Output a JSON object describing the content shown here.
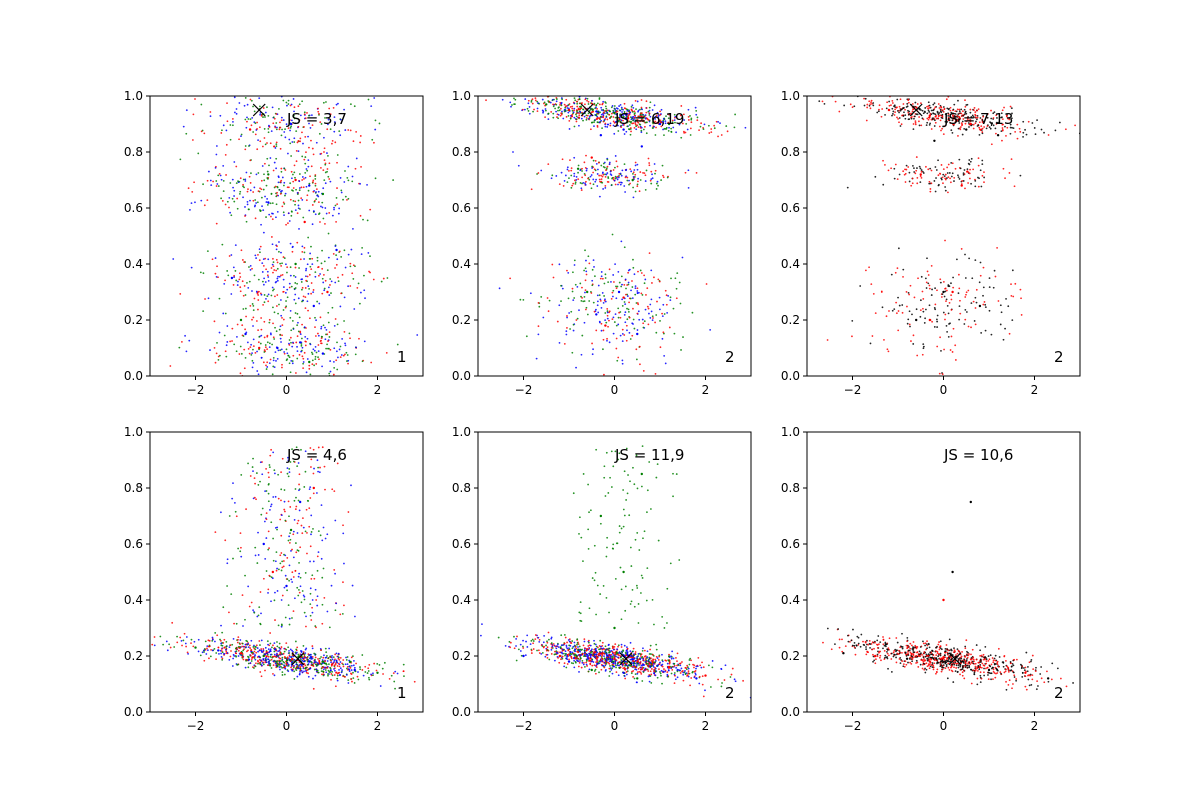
{
  "chart_data": [
    {
      "type": "scatter",
      "row": 1,
      "col": 1,
      "annotation": "JS = 3,7",
      "corner_label": "1",
      "xlim": [
        -3,
        3
      ],
      "ylim": [
        0,
        1
      ],
      "xticks": [
        "−2",
        "0",
        "2"
      ],
      "yticks": [
        "0.0",
        "0.2",
        "0.4",
        "0.6",
        "0.8",
        "1.0"
      ],
      "marker": {
        "x": -0.6,
        "y": 0.95
      },
      "series": [
        {
          "color": "#0000ff",
          "points": [
            [
              -0.2,
              0.1
            ],
            [
              0.3,
              0.12
            ],
            [
              0.8,
              0.08
            ],
            [
              -0.9,
              0.15
            ],
            [
              0.5,
              0.68
            ],
            [
              -0.4,
              0.62
            ],
            [
              0.1,
              0.9
            ],
            [
              -1.2,
              0.35
            ],
            [
              1.1,
              0.45
            ],
            [
              0.6,
              0.25
            ]
          ]
        },
        {
          "color": "#ff0000",
          "points": [
            [
              -0.6,
              0.1
            ],
            [
              0.2,
              0.7
            ],
            [
              -0.8,
              0.88
            ],
            [
              0.9,
              0.3
            ],
            [
              0.4,
              0.55
            ]
          ]
        },
        {
          "color": "#008000",
          "points": [
            [
              0.5,
              0.05
            ],
            [
              -0.4,
              0.72
            ],
            [
              0.2,
              0.4
            ],
            [
              -1.0,
              0.2
            ],
            [
              0.8,
              0.65
            ]
          ]
        }
      ]
    },
    {
      "type": "scatter",
      "row": 1,
      "col": 2,
      "annotation": "JS = 6,19",
      "corner_label": "2",
      "xlim": [
        -3,
        3
      ],
      "ylim": [
        0,
        1
      ],
      "xticks": [
        "−2",
        "0",
        "2"
      ],
      "yticks": [
        "0.0",
        "0.2",
        "0.4",
        "0.6",
        "0.8",
        "1.0"
      ],
      "marker": {
        "x": -0.6,
        "y": 0.95
      },
      "series": [
        {
          "color": "#0000ff",
          "points": [
            [
              0.2,
              0.88
            ],
            [
              0.6,
              0.82
            ],
            [
              -0.3,
              0.86
            ],
            [
              1.0,
              0.9
            ],
            [
              0.1,
              0.3
            ],
            [
              -0.4,
              0.22
            ],
            [
              0.5,
              0.15
            ]
          ]
        },
        {
          "color": "#ff0000",
          "points": [
            [
              -1.0,
              0.95
            ],
            [
              0.3,
              0.92
            ],
            [
              -0.5,
              0.78
            ],
            [
              0.2,
              0.28
            ],
            [
              -0.2,
              0.18
            ]
          ]
        },
        {
          "color": "#008000",
          "points": [
            [
              -1.5,
              0.97
            ],
            [
              0.0,
              0.94
            ],
            [
              1.2,
              0.9
            ],
            [
              -0.8,
              0.74
            ],
            [
              0.4,
              0.7
            ],
            [
              -0.6,
              0.3
            ]
          ]
        }
      ]
    },
    {
      "type": "scatter",
      "row": 1,
      "col": 3,
      "annotation": "JS = 7,13",
      "corner_label": "2",
      "xlim": [
        -3,
        3
      ],
      "ylim": [
        0,
        1
      ],
      "xticks": [
        "−2",
        "0",
        "2"
      ],
      "yticks": [
        "0.0",
        "0.2",
        "0.4",
        "0.6",
        "0.8",
        "1.0"
      ],
      "marker": {
        "x": -0.6,
        "y": 0.95
      },
      "series": [
        {
          "color": "#000000",
          "points": [
            [
              0.5,
              0.88
            ],
            [
              1.2,
              0.86
            ],
            [
              -0.2,
              0.84
            ],
            [
              0.0,
              0.3
            ],
            [
              -0.6,
              0.2
            ],
            [
              0.8,
              0.25
            ]
          ]
        },
        {
          "color": "#ff0000",
          "points": [
            [
              -1.2,
              0.95
            ],
            [
              -0.3,
              0.93
            ],
            [
              0.6,
              0.9
            ],
            [
              -0.5,
              0.72
            ],
            [
              0.4,
              0.68
            ],
            [
              0.2,
              0.3
            ],
            [
              -0.3,
              0.2
            ]
          ]
        }
      ]
    },
    {
      "type": "scatter",
      "row": 2,
      "col": 1,
      "annotation": "JS = 4,6",
      "corner_label": "1",
      "xlim": [
        -3,
        3
      ],
      "ylim": [
        0,
        1
      ],
      "xticks": [
        "−2",
        "0",
        "2"
      ],
      "yticks": [
        "0.0",
        "0.2",
        "0.4",
        "0.6",
        "0.8",
        "1.0"
      ],
      "marker": {
        "x": 0.25,
        "y": 0.19
      },
      "series": [
        {
          "color": "#0000ff",
          "points": [
            [
              -1.5,
              0.22
            ],
            [
              0.5,
              0.18
            ],
            [
              1.5,
              0.15
            ],
            [
              -0.5,
              0.6
            ],
            [
              0.3,
              0.75
            ],
            [
              0.0,
              0.45
            ]
          ]
        },
        {
          "color": "#ff0000",
          "points": [
            [
              -1.0,
              0.21
            ],
            [
              1.0,
              0.17
            ],
            [
              -0.3,
              0.5
            ],
            [
              0.6,
              0.8
            ]
          ]
        },
        {
          "color": "#008000",
          "points": [
            [
              -2.0,
              0.23
            ],
            [
              -0.5,
              0.2
            ],
            [
              0.8,
              0.18
            ],
            [
              2.0,
              0.14
            ],
            [
              0.1,
              0.65
            ]
          ]
        }
      ]
    },
    {
      "type": "scatter",
      "row": 2,
      "col": 2,
      "annotation": "JS = 11,9",
      "corner_label": "2",
      "xlim": [
        -3,
        3
      ],
      "ylim": [
        0,
        1
      ],
      "xticks": [
        "−2",
        "0",
        "2"
      ],
      "yticks": [
        "0.0",
        "0.2",
        "0.4",
        "0.6",
        "0.8",
        "1.0"
      ],
      "marker": {
        "x": 0.25,
        "y": 0.19
      },
      "series": [
        {
          "color": "#0000ff",
          "points": [
            [
              -2.0,
              0.2
            ],
            [
              0.2,
              0.14
            ],
            [
              1.8,
              0.12
            ],
            [
              -1.0,
              0.18
            ]
          ]
        },
        {
          "color": "#ff0000",
          "points": [
            [
              -1.2,
              0.2
            ],
            [
              0.0,
              0.19
            ],
            [
              1.2,
              0.16
            ],
            [
              2.0,
              0.13
            ]
          ]
        },
        {
          "color": "#008000",
          "points": [
            [
              -0.5,
              0.15
            ],
            [
              0.5,
              0.12
            ],
            [
              0.2,
              0.5
            ],
            [
              -0.3,
              0.7
            ],
            [
              0.6,
              0.85
            ],
            [
              0.0,
              0.3
            ]
          ]
        }
      ]
    },
    {
      "type": "scatter",
      "row": 2,
      "col": 3,
      "annotation": "JS = 10,6",
      "corner_label": "2",
      "xlim": [
        -3,
        3
      ],
      "ylim": [
        0,
        1
      ],
      "xticks": [
        "−2",
        "0",
        "2"
      ],
      "yticks": [
        "0.0",
        "0.2",
        "0.4",
        "0.6",
        "0.8",
        "1.0"
      ],
      "marker": {
        "x": 0.25,
        "y": 0.19
      },
      "series": [
        {
          "color": "#000000",
          "points": [
            [
              -2.2,
              0.21
            ],
            [
              -0.8,
              0.19
            ],
            [
              1.0,
              0.15
            ],
            [
              2.3,
              0.12
            ],
            [
              0.2,
              0.5
            ],
            [
              0.6,
              0.75
            ]
          ]
        },
        {
          "color": "#ff0000",
          "points": [
            [
              -1.5,
              0.2
            ],
            [
              -0.3,
              0.18
            ],
            [
              0.8,
              0.16
            ],
            [
              1.8,
              0.14
            ],
            [
              0.0,
              0.4
            ]
          ]
        }
      ]
    }
  ]
}
